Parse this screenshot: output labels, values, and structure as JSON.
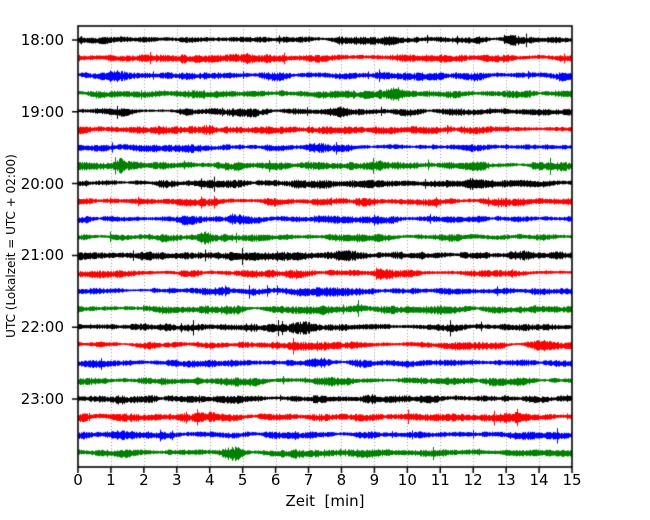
{
  "figure": {
    "background": "#ffffff",
    "axes_color": "#000000"
  },
  "chart_data": {
    "type": "line",
    "subtype": "seismogram_drum_plot",
    "title": "",
    "xlabel": "Zeit  [min]",
    "ylabel": "UTC (Lokalzeit = UTC + 02:00)",
    "xlim": [
      0,
      15
    ],
    "minutes_per_row": 15,
    "x_ticks": [
      "0",
      "1",
      "2",
      "3",
      "4",
      "5",
      "6",
      "7",
      "8",
      "9",
      "10",
      "11",
      "12",
      "13",
      "14",
      "15"
    ],
    "y_tick_labels": [
      "18:00",
      "19:00",
      "20:00",
      "21:00",
      "22:00",
      "23:00"
    ],
    "grid": {
      "vertical": "dotted",
      "horizontal": "none",
      "color": "#999999"
    },
    "legend": "none",
    "trace_color_cycle": [
      "#000000",
      "#ff0000",
      "#0000ff",
      "#008000"
    ],
    "traces": [
      {
        "start": "18:00",
        "color": "#000000",
        "amp": 4.1,
        "seed": 11,
        "bursts": [
          [
            13.2,
            0.5
          ]
        ]
      },
      {
        "start": "18:15",
        "color": "#ff0000",
        "amp": 4.0,
        "seed": 23,
        "bursts": [
          [
            4.9,
            0.5
          ]
        ]
      },
      {
        "start": "18:30",
        "color": "#0000ff",
        "amp": 4.2,
        "seed": 37,
        "bursts": [
          [
            1.1,
            0.5
          ]
        ]
      },
      {
        "start": "18:45",
        "color": "#008000",
        "amp": 3.9,
        "seed": 41,
        "bursts": [
          [
            9.6,
            0.9
          ]
        ]
      },
      {
        "start": "19:00",
        "color": "#000000",
        "amp": 4.0,
        "seed": 53,
        "bursts": [
          [
            8.0,
            0.5
          ]
        ]
      },
      {
        "start": "19:15",
        "color": "#ff0000",
        "amp": 4.1,
        "seed": 67,
        "bursts": [
          [
            3.8,
            0.6
          ]
        ]
      },
      {
        "start": "19:30",
        "color": "#0000ff",
        "amp": 3.9,
        "seed": 71,
        "bursts": [
          [
            7.2,
            0.5
          ]
        ]
      },
      {
        "start": "19:45",
        "color": "#008000",
        "amp": 4.3,
        "seed": 83,
        "bursts": [
          [
            1.4,
            1.1
          ],
          [
            9.2,
            0.6
          ]
        ]
      },
      {
        "start": "20:00",
        "color": "#000000",
        "amp": 4.2,
        "seed": 97,
        "bursts": [
          [
            12.0,
            0.5
          ]
        ]
      },
      {
        "start": "20:15",
        "color": "#ff0000",
        "amp": 4.0,
        "seed": 101,
        "bursts": []
      },
      {
        "start": "20:30",
        "color": "#0000ff",
        "amp": 4.1,
        "seed": 113,
        "bursts": [
          [
            4.8,
            0.8
          ],
          [
            7.6,
            0.6
          ]
        ]
      },
      {
        "start": "20:45",
        "color": "#008000",
        "amp": 4.0,
        "seed": 127,
        "bursts": [
          [
            3.8,
            0.6
          ]
        ]
      },
      {
        "start": "21:00",
        "color": "#000000",
        "amp": 4.2,
        "seed": 131,
        "bursts": [
          [
            8.2,
            0.8
          ],
          [
            13.5,
            0.6
          ]
        ]
      },
      {
        "start": "21:15",
        "color": "#ff0000",
        "amp": 4.0,
        "seed": 139,
        "bursts": [
          [
            9.3,
            0.6
          ]
        ]
      },
      {
        "start": "21:30",
        "color": "#0000ff",
        "amp": 3.9,
        "seed": 149,
        "bursts": [
          [
            4.4,
            0.6
          ],
          [
            7.6,
            0.6
          ]
        ]
      },
      {
        "start": "21:45",
        "color": "#008000",
        "amp": 4.1,
        "seed": 151,
        "bursts": [
          [
            8.6,
            0.7
          ]
        ]
      },
      {
        "start": "22:00",
        "color": "#000000",
        "amp": 4.1,
        "seed": 163,
        "bursts": [
          [
            6.8,
            0.6
          ]
        ]
      },
      {
        "start": "22:15",
        "color": "#ff0000",
        "amp": 4.0,
        "seed": 167,
        "bursts": [
          [
            14.1,
            0.9
          ]
        ]
      },
      {
        "start": "22:30",
        "color": "#0000ff",
        "amp": 4.0,
        "seed": 173,
        "bursts": [
          [
            7.3,
            0.7
          ]
        ]
      },
      {
        "start": "22:45",
        "color": "#008000",
        "amp": 4.0,
        "seed": 181,
        "bursts": [
          [
            7.6,
            0.6
          ]
        ]
      },
      {
        "start": "23:00",
        "color": "#000000",
        "amp": 4.1,
        "seed": 191,
        "bursts": [
          [
            8.9,
            0.5
          ]
        ]
      },
      {
        "start": "23:15",
        "color": "#ff0000",
        "amp": 4.0,
        "seed": 193,
        "bursts": [
          [
            3.9,
            0.8
          ],
          [
            13.2,
            0.6
          ]
        ]
      },
      {
        "start": "23:30",
        "color": "#0000ff",
        "amp": 3.9,
        "seed": 197,
        "bursts": [
          [
            1.3,
            0.5
          ]
        ]
      },
      {
        "start": "23:45",
        "color": "#008000",
        "amp": 4.0,
        "seed": 199,
        "bursts": [
          [
            4.7,
            0.6
          ]
        ]
      }
    ]
  }
}
